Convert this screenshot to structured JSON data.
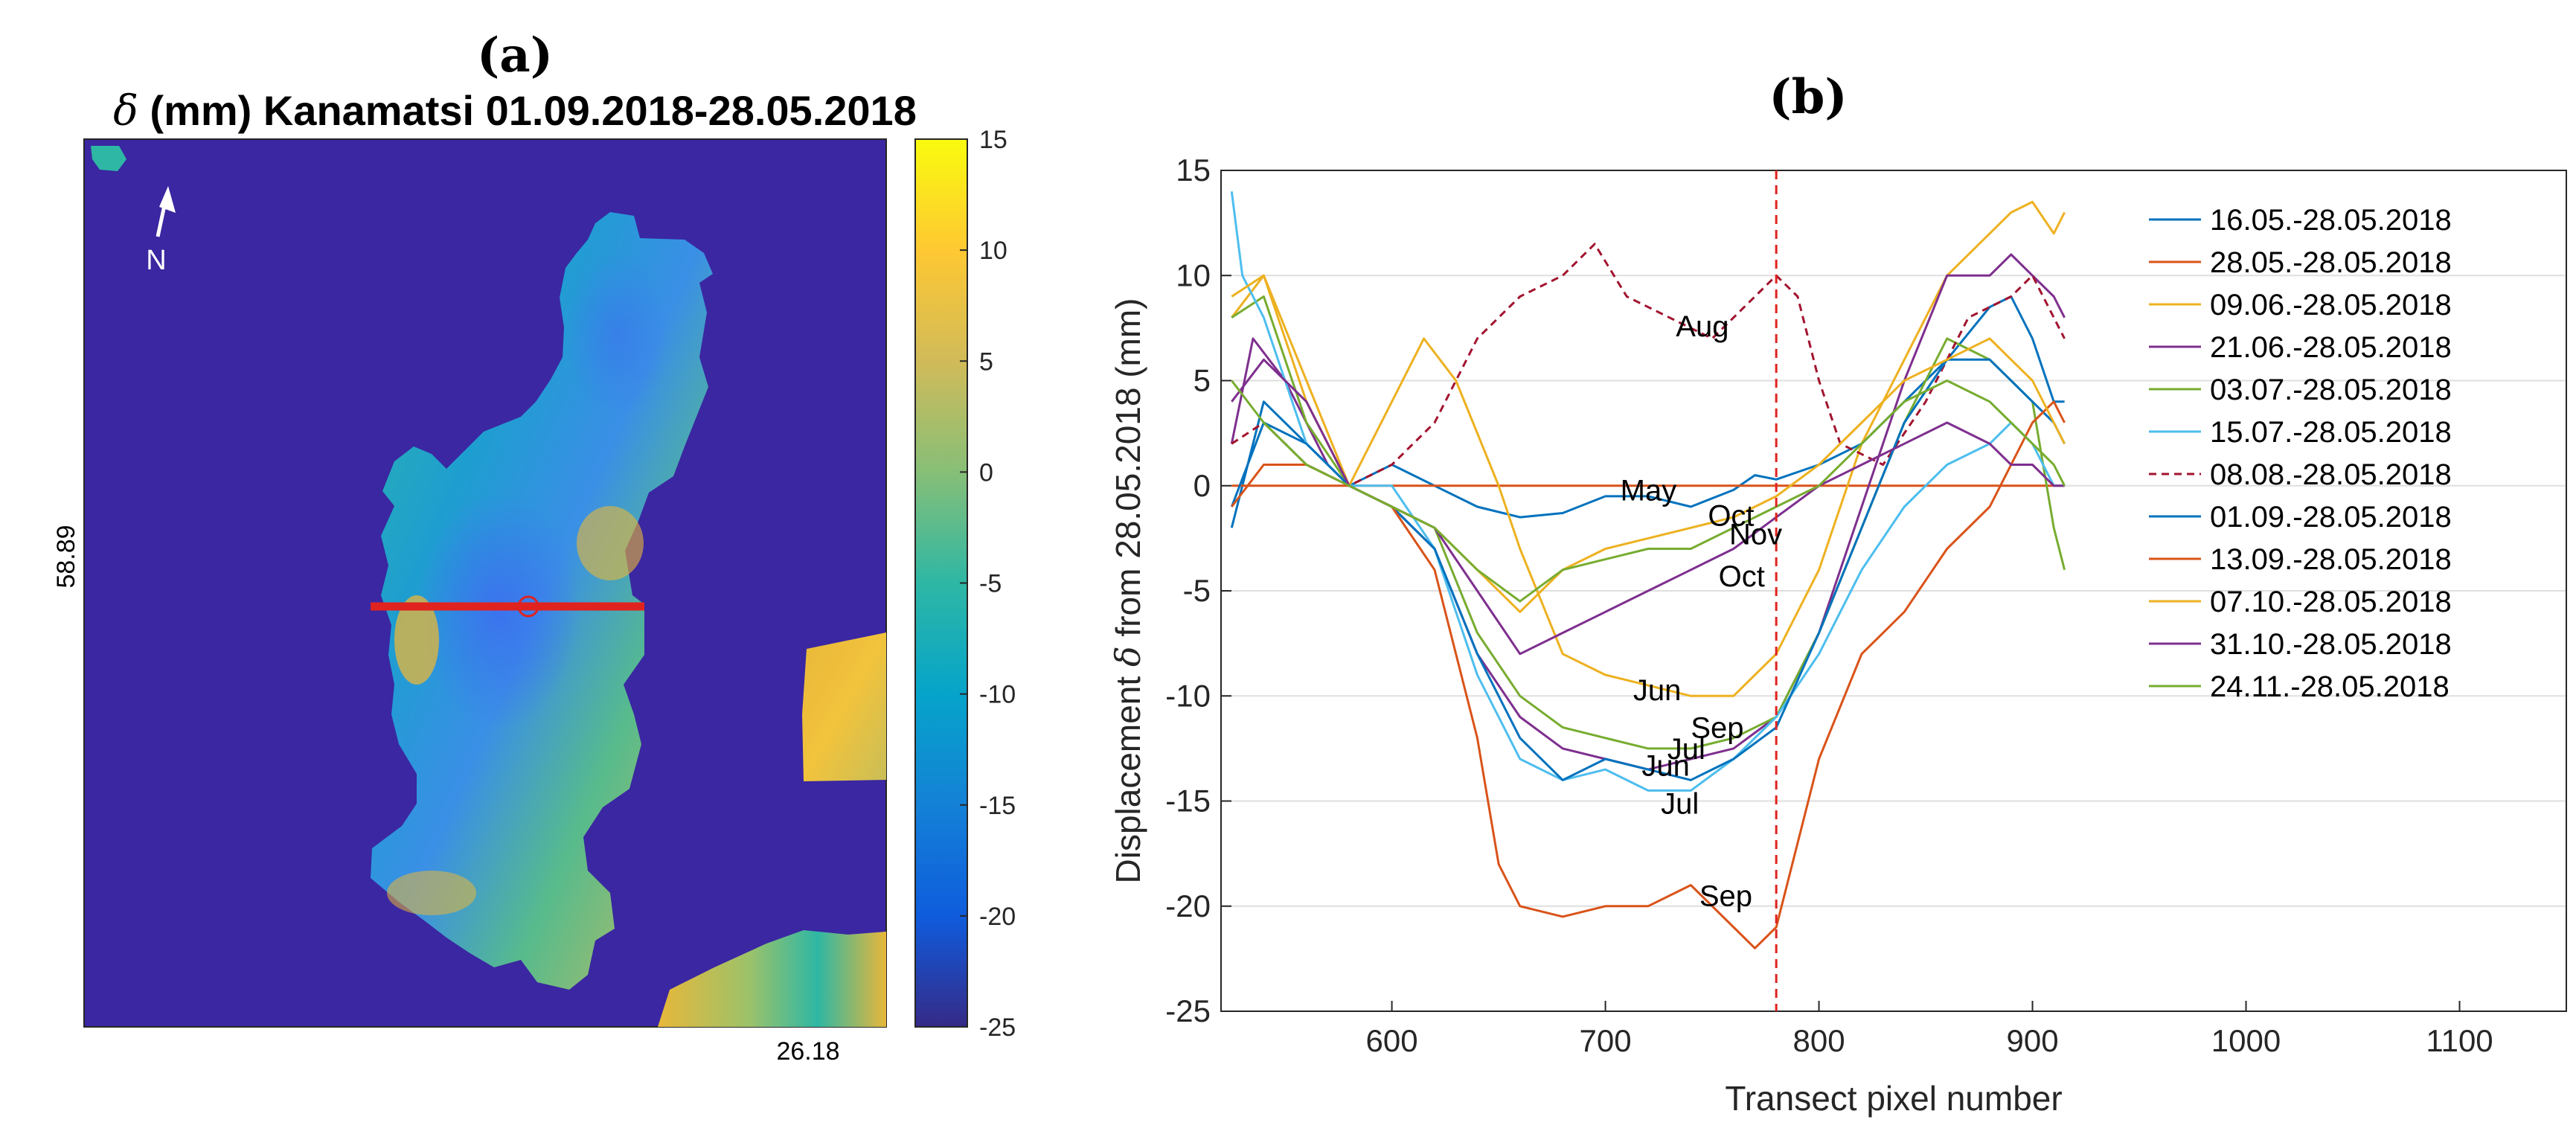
{
  "panel_a": {
    "label": "(a)",
    "title_symbol": "δ",
    "title_rest": " (mm) Kanamatsi 01.09.2018-28.05.2018",
    "north_label": "N",
    "lat_label": "58.89",
    "lon_label": "26.18"
  },
  "panel_b": {
    "label": "(b)"
  },
  "colors": {
    "background_map": "#3A27A1",
    "transect": "#E0231F",
    "axis": "#262626",
    "grid": "#DFDFDF"
  },
  "chart_data": [
    {
      "type": "heatmap",
      "title": "δ (mm) Kanamatsi 01.09.2018-28.05.2018",
      "colormap": "parula",
      "colorbar_ticks": [
        15,
        10,
        5,
        0,
        -5,
        -10,
        -15,
        -20,
        -25
      ],
      "clim": [
        -25,
        15
      ],
      "xtick_labels": [
        "26.18"
      ],
      "ytick_labels": [
        "58.89"
      ]
    },
    {
      "type": "line",
      "title": "",
      "xlabel": "Transect pixel number",
      "ylabel_prefix": "Displacement ",
      "ylabel_symbol": "δ",
      "ylabel_suffix": " from 28.05.2018 (mm)",
      "xlim": [
        520,
        1150
      ],
      "ylim": [
        -25,
        15
      ],
      "xticks": [
        600,
        700,
        800,
        900,
        1000,
        1100
      ],
      "yticks": [
        -25,
        -20,
        -15,
        -10,
        -5,
        0,
        5,
        10,
        15
      ],
      "vline_x": 780,
      "series": [
        {
          "name": "16.05.-28.05.2018",
          "color": "#0072BD",
          "dash": false,
          "x": [
            525,
            540,
            560,
            580,
            600,
            620,
            640,
            660,
            680,
            700,
            720,
            740,
            760,
            770,
            780,
            800,
            820,
            840,
            860,
            880,
            890,
            900,
            910,
            915
          ],
          "y": [
            -2,
            4,
            2,
            0,
            1,
            0,
            -1,
            -1.5,
            -1.3,
            -0.5,
            -0.5,
            -1,
            -0.2,
            0.5,
            0.3,
            1,
            2,
            4,
            6,
            8.5,
            9,
            7,
            4,
            4
          ]
        },
        {
          "name": "28.05.-28.05.2018",
          "color": "#D95319",
          "dash": false,
          "x": [
            525,
            915
          ],
          "y": [
            0,
            0
          ]
        },
        {
          "name": "09.06.-28.05.2018",
          "color": "#EDB120",
          "dash": false,
          "x": [
            525,
            540,
            560,
            580,
            600,
            615,
            630,
            650,
            660,
            680,
            700,
            720,
            740,
            760,
            780,
            800,
            820,
            840,
            860,
            880,
            890,
            900,
            910,
            915
          ],
          "y": [
            8,
            10,
            4,
            0,
            4,
            7,
            5,
            0,
            -3,
            -8,
            -9,
            -9.5,
            -10,
            -10,
            -8,
            -4,
            2,
            6,
            10,
            12,
            13,
            13.5,
            12,
            13
          ]
        },
        {
          "name": "21.06.-28.05.2018",
          "color": "#7E2F8E",
          "dash": false,
          "x": [
            525,
            535,
            550,
            570,
            580,
            600,
            620,
            640,
            660,
            680,
            700,
            720,
            740,
            760,
            780,
            800,
            820,
            840,
            860,
            880,
            890,
            900,
            910,
            915
          ],
          "y": [
            2,
            7,
            5,
            1,
            0,
            -1,
            -3,
            -8,
            -11,
            -12.5,
            -13,
            -13.5,
            -13,
            -12.5,
            -11,
            -7,
            -1,
            5,
            10,
            10,
            11,
            10,
            9,
            8
          ]
        },
        {
          "name": "03.07.-28.05.2018",
          "color": "#77AC30",
          "dash": false,
          "x": [
            525,
            540,
            560,
            580,
            600,
            620,
            640,
            660,
            680,
            700,
            720,
            740,
            760,
            780,
            800,
            820,
            840,
            860,
            880,
            890,
            900,
            910,
            915
          ],
          "y": [
            8,
            9,
            3,
            0,
            -1,
            -2,
            -7,
            -10,
            -11.5,
            -12,
            -12.5,
            -12.5,
            -12,
            -11,
            -7,
            -2,
            3,
            7,
            6,
            5,
            4,
            -2,
            -4
          ]
        },
        {
          "name": "15.07.-28.05.2018",
          "color": "#4DBEEE",
          "dash": false,
          "x": [
            525,
            530,
            540,
            560,
            580,
            600,
            620,
            640,
            660,
            680,
            700,
            720,
            740,
            760,
            780,
            800,
            820,
            840,
            860,
            880,
            890,
            900,
            910,
            915
          ],
          "y": [
            14,
            10,
            8,
            2,
            0,
            0,
            -3,
            -9,
            -13,
            -14,
            -13.5,
            -14.5,
            -14.5,
            -13,
            -11,
            -8,
            -4,
            -1,
            1,
            2,
            3,
            2,
            0,
            0
          ]
        },
        {
          "name": "08.08.-28.05.2018",
          "color": "#A2142F",
          "dash": true,
          "x": [
            525,
            540,
            560,
            580,
            600,
            620,
            640,
            660,
            680,
            695,
            710,
            730,
            750,
            770,
            780,
            790,
            800,
            810,
            830,
            850,
            870,
            890,
            900,
            910,
            915
          ],
          "y": [
            2,
            3,
            1,
            0,
            1,
            3,
            7,
            9,
            10,
            11.5,
            9,
            8,
            7,
            9,
            10,
            9,
            5,
            2,
            1,
            4,
            8,
            9,
            10,
            8,
            7
          ]
        },
        {
          "name": "01.09.-28.05.2018",
          "color": "#0072BD",
          "dash": false,
          "x": [
            525,
            540,
            560,
            580,
            600,
            620,
            640,
            660,
            680,
            700,
            720,
            740,
            760,
            780,
            800,
            820,
            840,
            860,
            880,
            890,
            900,
            910,
            915
          ],
          "y": [
            -1,
            3,
            2,
            0,
            -1,
            -3,
            -8,
            -12,
            -14,
            -13,
            -13.5,
            -14,
            -13,
            -11.5,
            -7,
            -2,
            3,
            6,
            6,
            5,
            4,
            3,
            2
          ]
        },
        {
          "name": "13.09.-28.05.2018",
          "color": "#D95319",
          "dash": false,
          "x": [
            525,
            540,
            560,
            580,
            600,
            620,
            640,
            650,
            660,
            680,
            700,
            720,
            740,
            760,
            770,
            780,
            790,
            800,
            820,
            840,
            860,
            880,
            890,
            900,
            910,
            915
          ],
          "y": [
            -1,
            1,
            1,
            0,
            -1,
            -4,
            -12,
            -18,
            -20,
            -20.5,
            -20,
            -20,
            -19,
            -21,
            -22,
            -21,
            -17,
            -13,
            -8,
            -6,
            -3,
            -1,
            1,
            3,
            4,
            3
          ]
        },
        {
          "name": "07.10.-28.05.2018",
          "color": "#EDB120",
          "dash": false,
          "x": [
            525,
            540,
            560,
            580,
            600,
            620,
            640,
            660,
            680,
            700,
            720,
            740,
            760,
            780,
            800,
            820,
            840,
            860,
            880,
            890,
            900,
            910,
            915
          ],
          "y": [
            9,
            10,
            5,
            0,
            -1,
            -2,
            -4,
            -6,
            -4,
            -3,
            -2.5,
            -2,
            -1.5,
            -0.5,
            1,
            3,
            5,
            6,
            7,
            6,
            5,
            3,
            2
          ]
        },
        {
          "name": "31.10.-28.05.2018",
          "color": "#7E2F8E",
          "dash": false,
          "x": [
            525,
            540,
            560,
            580,
            600,
            620,
            640,
            660,
            680,
            700,
            720,
            740,
            760,
            780,
            800,
            820,
            840,
            860,
            880,
            890,
            900,
            910,
            915
          ],
          "y": [
            4,
            6,
            4,
            0,
            -1,
            -2,
            -5,
            -8,
            -7,
            -6,
            -5,
            -4,
            -3,
            -1.5,
            0,
            1,
            2,
            3,
            2,
            1,
            1,
            0,
            0
          ]
        },
        {
          "name": "24.11.-28.05.2018",
          "color": "#77AC30",
          "dash": false,
          "x": [
            525,
            540,
            560,
            580,
            600,
            620,
            640,
            660,
            680,
            700,
            720,
            740,
            760,
            780,
            800,
            820,
            840,
            860,
            880,
            890,
            900,
            910,
            915
          ],
          "y": [
            5,
            3,
            1,
            0,
            -1,
            -2,
            -4,
            -5.5,
            -4,
            -3.5,
            -3,
            -3,
            -2,
            -1,
            0,
            2,
            4,
            5,
            4,
            3,
            2,
            1,
            0
          ]
        }
      ],
      "annotations": [
        {
          "text": "Aug",
          "x": 733,
          "y": 7.6
        },
        {
          "text": "May",
          "x": 707,
          "y": -0.2
        },
        {
          "text": "Oct",
          "x": 748,
          "y": -1.4
        },
        {
          "text": "Nov",
          "x": 758,
          "y": -2.3
        },
        {
          "text": "Oct",
          "x": 753,
          "y": -4.3
        },
        {
          "text": "Jun",
          "x": 713,
          "y": -9.7
        },
        {
          "text": "Sep",
          "x": 740,
          "y": -11.5
        },
        {
          "text": "Jul",
          "x": 729,
          "y": -12.5
        },
        {
          "text": "Jun",
          "x": 717,
          "y": -13.3
        },
        {
          "text": "Jul",
          "x": 726,
          "y": -15.1
        },
        {
          "text": "Sep",
          "x": 744,
          "y": -19.5
        }
      ]
    }
  ]
}
